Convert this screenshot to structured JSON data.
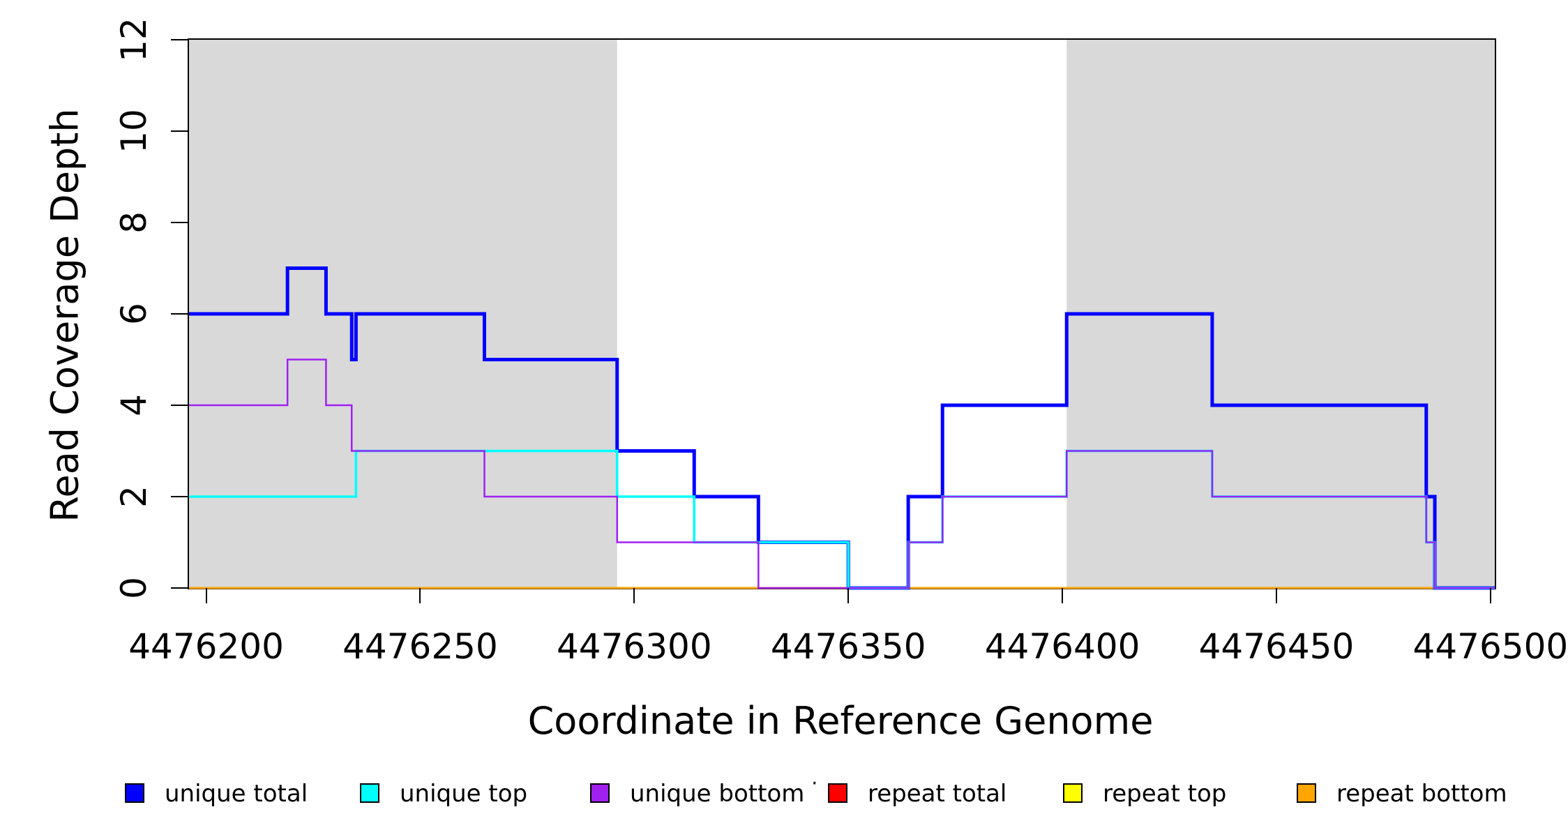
{
  "figure": {
    "x_axis_title": "Coordinate in Reference Genome",
    "y_axis_title": "Read Coverage Depth"
  },
  "legend": {
    "separator_dot": "·",
    "items": [
      {
        "label": "unique total",
        "color": "#0000FF"
      },
      {
        "label": "unique top",
        "color": "#00FFFF"
      },
      {
        "label": "unique bottom",
        "color": "#A020F0"
      },
      {
        "label": "repeat total",
        "color": "#FF0000"
      },
      {
        "label": "repeat top",
        "color": "#FFFF00"
      },
      {
        "label": "repeat bottom",
        "color": "#FFA500"
      }
    ]
  },
  "chart_data": {
    "type": "line",
    "subtype": "step-after",
    "title": "",
    "xlabel": "Coordinate in Reference Genome",
    "ylabel": "Read Coverage Depth",
    "xlim": [
      4476196,
      4476501
    ],
    "ylim": [
      0,
      12
    ],
    "grid": false,
    "legend_position": "bottom",
    "x_ticks": [
      {
        "value": 4476200,
        "label": "4476200"
      },
      {
        "value": 4476250,
        "label": "4476250"
      },
      {
        "value": 4476300,
        "label": "4476300"
      },
      {
        "value": 4476350,
        "label": "4476350"
      },
      {
        "value": 4476400,
        "label": "4476400"
      },
      {
        "value": 4476450,
        "label": "4476450"
      },
      {
        "value": 4476500,
        "label": "4476500"
      }
    ],
    "y_ticks": [
      {
        "value": 0,
        "label": "0"
      },
      {
        "value": 2,
        "label": "2"
      },
      {
        "value": 4,
        "label": "4"
      },
      {
        "value": 6,
        "label": "6"
      },
      {
        "value": 8,
        "label": "8"
      },
      {
        "value": 10,
        "label": "10"
      },
      {
        "value": 12,
        "label": "12"
      }
    ],
    "shaded_regions": [
      {
        "x0": 4476196,
        "x1": 4476296,
        "color": "#D9D9D9"
      },
      {
        "x0": 4476401,
        "x1": 4476501,
        "color": "#D9D9D9"
      }
    ],
    "x_end": 4476501,
    "series": [
      {
        "name": "repeat total",
        "color": "#FF0000",
        "width": 3,
        "steps": [
          [
            4476196,
            0
          ]
        ]
      },
      {
        "name": "repeat top",
        "color": "#FFFF00",
        "width": 3,
        "steps": [
          [
            4476196,
            0
          ]
        ]
      },
      {
        "name": "repeat bottom",
        "color": "#FFA500",
        "width": 3,
        "steps": [
          [
            4476196,
            0
          ]
        ]
      },
      {
        "name": "unique total",
        "color": "#0000FF",
        "width": 5,
        "steps": [
          [
            4476196,
            6
          ],
          [
            4476219,
            7
          ],
          [
            4476228,
            6
          ],
          [
            4476234,
            5
          ],
          [
            4476235,
            6
          ],
          [
            4476265,
            5
          ],
          [
            4476296,
            3
          ],
          [
            4476314,
            2
          ],
          [
            4476329,
            1
          ],
          [
            4476350,
            0
          ],
          [
            4476364,
            2
          ],
          [
            4476372,
            4
          ],
          [
            4476401,
            6
          ],
          [
            4476435,
            4
          ],
          [
            4476485,
            2
          ],
          [
            4476487,
            0
          ]
        ]
      },
      {
        "name": "unique top",
        "color": "#00FFFF",
        "width": 3.5,
        "steps": [
          [
            4476196,
            2
          ],
          [
            4476235,
            3
          ],
          [
            4476296,
            2
          ],
          [
            4476314,
            1
          ],
          [
            4476350,
            0
          ],
          [
            4476364,
            1
          ],
          [
            4476372,
            2
          ],
          [
            4476401,
            3
          ],
          [
            4476435,
            2
          ],
          [
            4476485,
            1
          ],
          [
            4476487,
            0
          ]
        ]
      },
      {
        "name": "unique bottom",
        "color": "#A020F0",
        "width": 2.5,
        "steps": [
          [
            4476196,
            4
          ],
          [
            4476219,
            5
          ],
          [
            4476228,
            4
          ],
          [
            4476234,
            3
          ],
          [
            4476265,
            2
          ],
          [
            4476296,
            1
          ],
          [
            4476329,
            0
          ],
          [
            4476364,
            1
          ],
          [
            4476372,
            2
          ],
          [
            4476401,
            3
          ],
          [
            4476435,
            2
          ],
          [
            4476485,
            1
          ],
          [
            4476487,
            0
          ]
        ]
      }
    ]
  }
}
